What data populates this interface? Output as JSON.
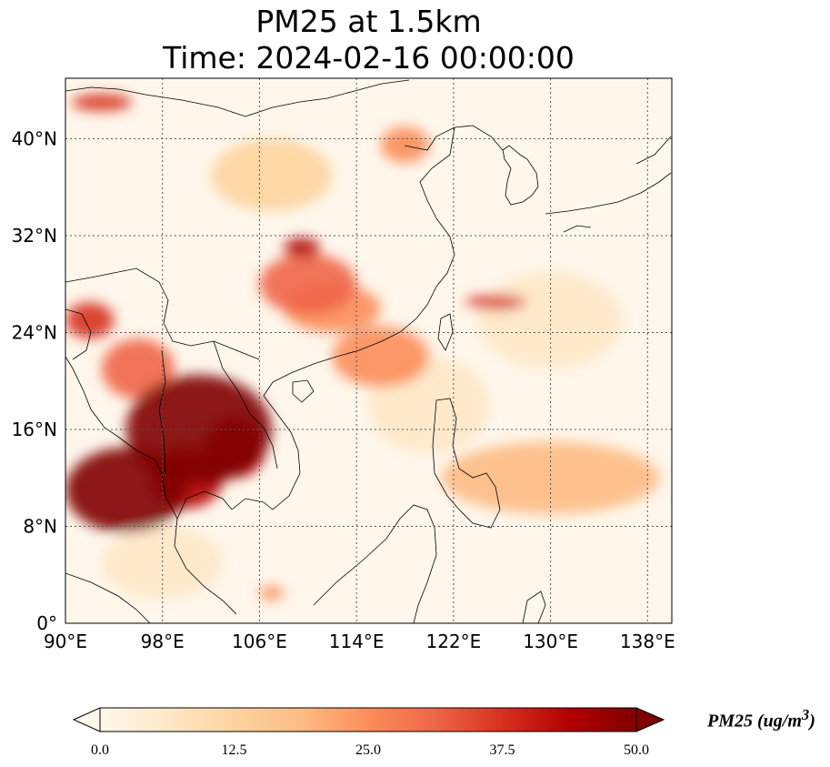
{
  "title": "PM25 at 1.5km",
  "subtitle": "Time: 2024-02-16 00:00:00",
  "variable": "PM25",
  "unit_label_prefix": "PM25 (ug/m",
  "unit_label_sup": "3",
  "unit_label_suffix": ")",
  "map_extent": {
    "lon": [
      90,
      140
    ],
    "lat": [
      0,
      45
    ]
  },
  "lon_ticks": [
    {
      "value": 90,
      "label": "90°E"
    },
    {
      "value": 98,
      "label": "98°E"
    },
    {
      "value": 106,
      "label": "106°E"
    },
    {
      "value": 114,
      "label": "114°E"
    },
    {
      "value": 122,
      "label": "122°E"
    },
    {
      "value": 130,
      "label": "130°E"
    },
    {
      "value": 138,
      "label": "138°E"
    }
  ],
  "lat_ticks": [
    {
      "value": 0,
      "label": "0°"
    },
    {
      "value": 8,
      "label": "8°N"
    },
    {
      "value": 16,
      "label": "16°N"
    },
    {
      "value": 24,
      "label": "24°N"
    },
    {
      "value": 32,
      "label": "32°N"
    },
    {
      "value": 40,
      "label": "40°N"
    }
  ],
  "colorbar": {
    "colormap": "OrRd",
    "min": 0,
    "max": 50,
    "extend": "both",
    "colors": [
      "#fff7ec",
      "#fee8c8",
      "#fdd49e",
      "#fdbb84",
      "#fc8d59",
      "#ef6548",
      "#d7301f",
      "#b30000",
      "#7f0000"
    ],
    "ticks": [
      {
        "value": 0,
        "label": "0.0"
      },
      {
        "value": 12.5,
        "label": "12.5"
      },
      {
        "value": 25,
        "label": "25.0"
      },
      {
        "value": 37.5,
        "label": "37.5"
      },
      {
        "value": 50,
        "label": "50.0"
      }
    ]
  },
  "pm25_blobs": [
    {
      "lon": 101,
      "lat": 16,
      "rlon": 6,
      "rlat": 4.5,
      "value": 52
    },
    {
      "lon": 95,
      "lat": 11,
      "rlon": 5,
      "rlat": 3.5,
      "value": 50
    },
    {
      "lon": 100,
      "lat": 12,
      "rlon": 3,
      "rlat": 2.5,
      "value": 44
    },
    {
      "lon": 104,
      "lat": 14.5,
      "rlon": 2.5,
      "rlat": 2.5,
      "value": 45
    },
    {
      "lon": 92,
      "lat": 25,
      "rlon": 2,
      "rlat": 1.5,
      "value": 40
    },
    {
      "lon": 96,
      "lat": 21,
      "rlon": 3,
      "rlat": 2.5,
      "value": 30
    },
    {
      "lon": 110,
      "lat": 28,
      "rlon": 4,
      "rlat": 2.5,
      "value": 30
    },
    {
      "lon": 109.5,
      "lat": 31,
      "rlon": 1.5,
      "rlat": 0.8,
      "value": 42
    },
    {
      "lon": 112,
      "lat": 26,
      "rlon": 4,
      "rlat": 2,
      "value": 24
    },
    {
      "lon": 116,
      "lat": 22,
      "rlon": 4,
      "rlat": 2.5,
      "value": 22
    },
    {
      "lon": 125.5,
      "lat": 26.5,
      "rlon": 2.5,
      "rlat": 0.6,
      "value": 38
    },
    {
      "lon": 130,
      "lat": 12,
      "rlon": 9,
      "rlat": 3,
      "value": 18
    },
    {
      "lon": 93,
      "lat": 43,
      "rlon": 2.5,
      "rlat": 0.7,
      "value": 38
    },
    {
      "lon": 118,
      "lat": 39.5,
      "rlon": 2,
      "rlat": 1.5,
      "value": 22
    },
    {
      "lon": 107,
      "lat": 37,
      "rlon": 5,
      "rlat": 3,
      "value": 10
    },
    {
      "lon": 130,
      "lat": 25,
      "rlon": 6,
      "rlat": 4,
      "value": 8
    },
    {
      "lon": 98,
      "lat": 5,
      "rlon": 5,
      "rlat": 3,
      "value": 8
    },
    {
      "lon": 107,
      "lat": 2.5,
      "rlon": 1,
      "rlat": 0.6,
      "value": 26
    },
    {
      "lon": 120,
      "lat": 18,
      "rlon": 5,
      "rlat": 4,
      "value": 7
    }
  ]
}
